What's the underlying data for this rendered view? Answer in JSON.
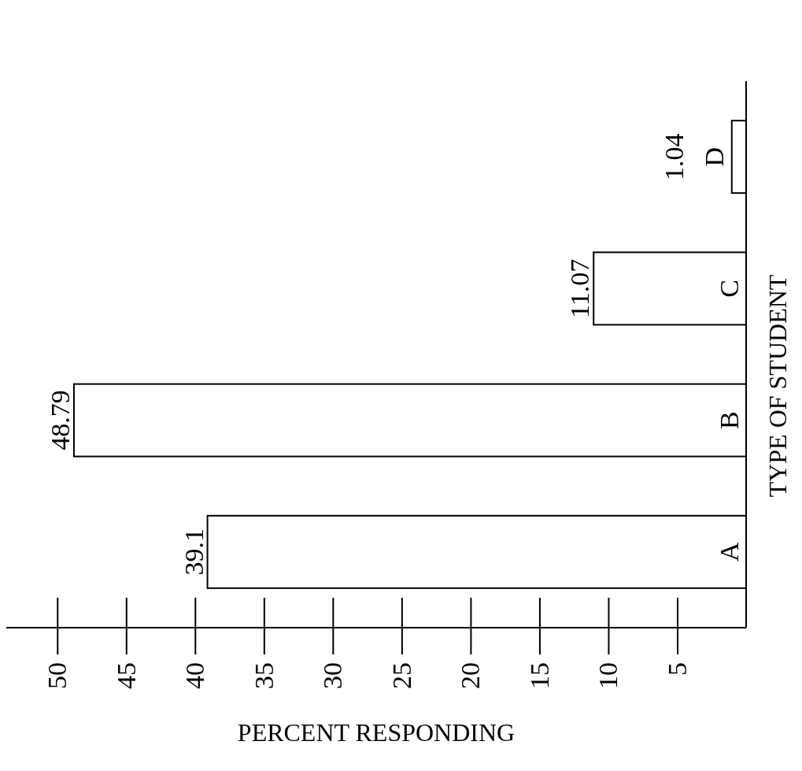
{
  "chart_data": {
    "type": "bar",
    "orientation": "horizontal",
    "xlabel": "PERCENT RESPONDING",
    "ylabel": "TYPE OF STUDENT",
    "categories": [
      "D",
      "C",
      "B",
      "A"
    ],
    "values": [
      1.04,
      11.07,
      48.79,
      39.1
    ],
    "color": "#ffffff",
    "data_labels": true,
    "xlim": [
      53.7,
      0
    ],
    "xticks": [
      5,
      10,
      15,
      20,
      25,
      30,
      35,
      40,
      45,
      50
    ],
    "grid": false
  }
}
